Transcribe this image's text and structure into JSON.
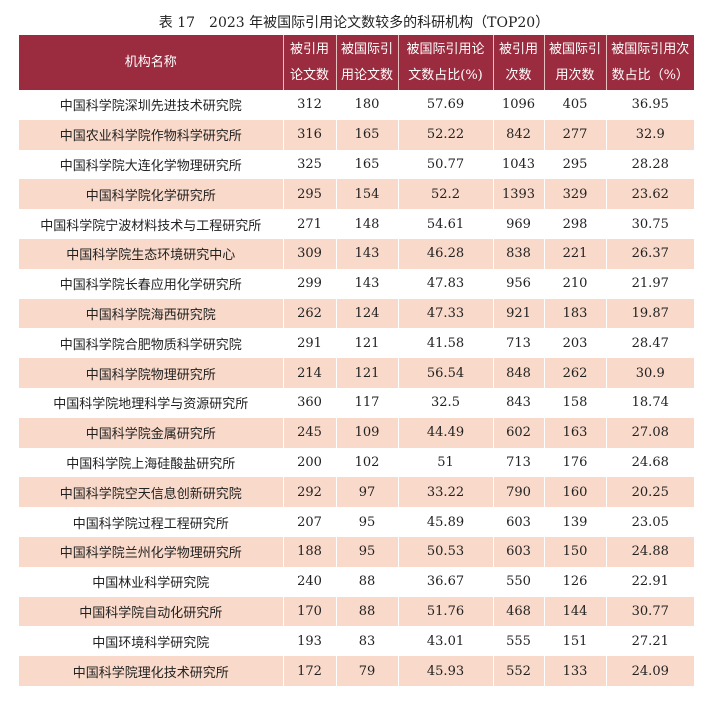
{
  "caption": "表 17　2023 年被国际引用论文数较多的科研机构（TOP20）",
  "headers": [
    [
      "机构名称"
    ],
    [
      "被引用",
      "论文数"
    ],
    [
      "被国际引",
      "用论文数"
    ],
    [
      "被国际引用论",
      "文数占比(%)"
    ],
    [
      "被引用",
      "次数"
    ],
    [
      "被国际引",
      "用次数"
    ],
    [
      "被国际引用次",
      "数占比（%）"
    ]
  ],
  "rows": [
    [
      "中国科学院深圳先进技术研究院",
      "312",
      "180",
      "57.69",
      "1096",
      "405",
      "36.95"
    ],
    [
      "中国农业科学院作物科学研究所",
      "316",
      "165",
      "52.22",
      "842",
      "277",
      "32.9"
    ],
    [
      "中国科学院大连化学物理研究所",
      "325",
      "165",
      "50.77",
      "1043",
      "295",
      "28.28"
    ],
    [
      "中国科学院化学研究所",
      "295",
      "154",
      "52.2",
      "1393",
      "329",
      "23.62"
    ],
    [
      "中国科学院宁波材料技术与工程研究所",
      "271",
      "148",
      "54.61",
      "969",
      "298",
      "30.75"
    ],
    [
      "中国科学院生态环境研究中心",
      "309",
      "143",
      "46.28",
      "838",
      "221",
      "26.37"
    ],
    [
      "中国科学院长春应用化学研究所",
      "299",
      "143",
      "47.83",
      "956",
      "210",
      "21.97"
    ],
    [
      "中国科学院海西研究院",
      "262",
      "124",
      "47.33",
      "921",
      "183",
      "19.87"
    ],
    [
      "中国科学院合肥物质科学研究院",
      "291",
      "121",
      "41.58",
      "713",
      "203",
      "28.47"
    ],
    [
      "中国科学院物理研究所",
      "214",
      "121",
      "56.54",
      "848",
      "262",
      "30.9"
    ],
    [
      "中国科学院地理科学与资源研究所",
      "360",
      "117",
      "32.5",
      "843",
      "158",
      "18.74"
    ],
    [
      "中国科学院金属研究所",
      "245",
      "109",
      "44.49",
      "602",
      "163",
      "27.08"
    ],
    [
      "中国科学院上海硅酸盐研究所",
      "200",
      "102",
      "51",
      "713",
      "176",
      "24.68"
    ],
    [
      "中国科学院空天信息创新研究院",
      "292",
      "97",
      "33.22",
      "790",
      "160",
      "20.25"
    ],
    [
      "中国科学院过程工程研究所",
      "207",
      "95",
      "45.89",
      "603",
      "139",
      "23.05"
    ],
    [
      "中国科学院兰州化学物理研究所",
      "188",
      "95",
      "50.53",
      "603",
      "150",
      "24.88"
    ],
    [
      "中国林业科学研究院",
      "240",
      "88",
      "36.67",
      "550",
      "126",
      "22.91"
    ],
    [
      "中国科学院自动化研究所",
      "170",
      "88",
      "51.76",
      "468",
      "144",
      "30.77"
    ],
    [
      "中国环境科学研究院",
      "193",
      "83",
      "43.01",
      "555",
      "151",
      "27.21"
    ],
    [
      "中国科学院理化技术研究所",
      "172",
      "79",
      "45.93",
      "552",
      "133",
      "24.09"
    ]
  ],
  "colors": {
    "header": "#9b2c3f",
    "alt_row": "#f9d9c9"
  }
}
